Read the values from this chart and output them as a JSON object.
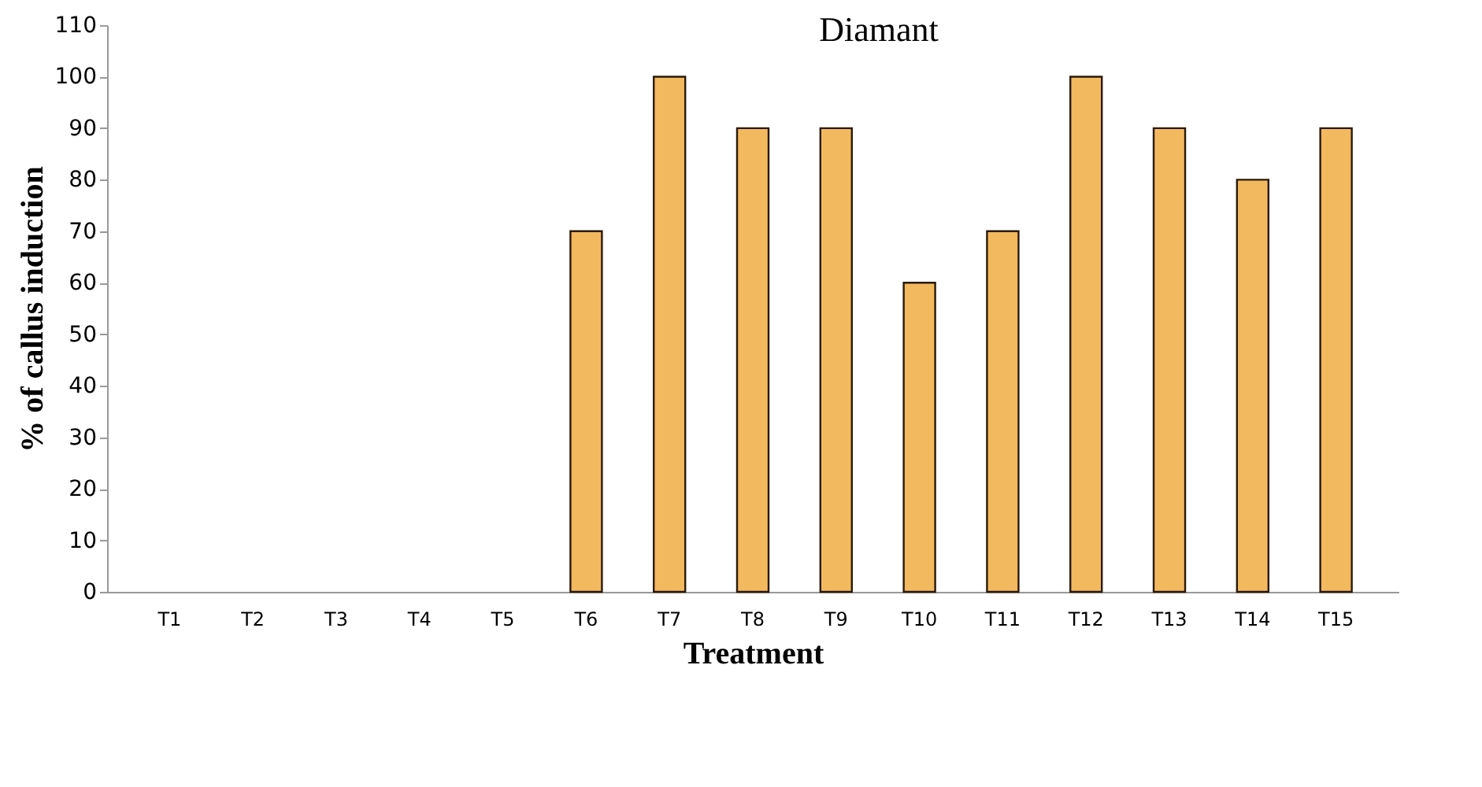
{
  "chart_data": {
    "type": "bar",
    "title": "Diamant",
    "xlabel": "Treatment",
    "ylabel": "% of callus induction",
    "categories": [
      "T1",
      "T2",
      "T3",
      "T4",
      "T5",
      "T6",
      "T7",
      "T8",
      "T9",
      "T10",
      "T11",
      "T12",
      "T13",
      "T14",
      "T15"
    ],
    "values": [
      0,
      0,
      0,
      0,
      0,
      70,
      100,
      90,
      90,
      60,
      70,
      100,
      90,
      80,
      90
    ],
    "color": "#f3b95f",
    "ylim": [
      0,
      110
    ],
    "yticks": [
      0,
      10,
      20,
      30,
      40,
      50,
      60,
      70,
      80,
      90,
      100,
      110
    ],
    "grid": false
  }
}
